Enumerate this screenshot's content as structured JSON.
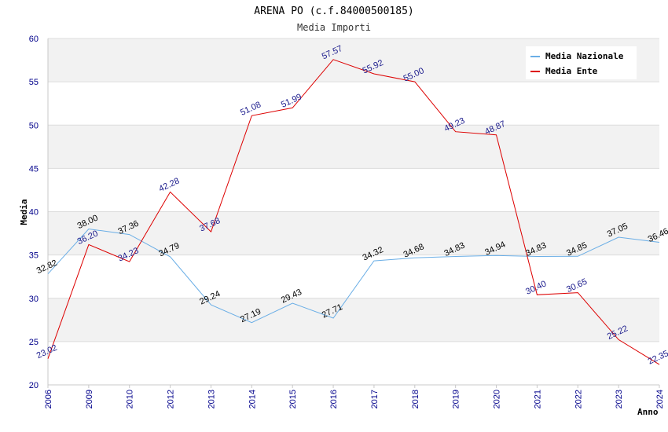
{
  "chart_data": {
    "type": "line",
    "title": "ARENA PO (c.f.84000500185)",
    "subtitle": "Media Importi",
    "xlabel": "Anno",
    "ylabel": "Media",
    "ylim": [
      20,
      60
    ],
    "yticks": [
      20,
      25,
      30,
      35,
      40,
      45,
      50,
      55,
      60
    ],
    "categories": [
      "2006",
      "2009",
      "2010",
      "2012",
      "2013",
      "2014",
      "2015",
      "2016",
      "2017",
      "2018",
      "2019",
      "2020",
      "2021",
      "2022",
      "2023",
      "2024"
    ],
    "legend_position": "top-right",
    "series": [
      {
        "name": "Media Nazionale",
        "color": "#6aaee6",
        "values": [
          32.82,
          38.0,
          37.36,
          34.79,
          29.24,
          27.19,
          29.43,
          27.71,
          34.32,
          34.68,
          34.83,
          34.94,
          34.83,
          34.85,
          37.05,
          36.46
        ],
        "labels": [
          "32.82",
          "38.00",
          "37.36",
          "34.79",
          "29.24",
          "27.19",
          "29.43",
          "27.71",
          "34.32",
          "34.68",
          "34.83",
          "34.94",
          "34.83",
          "34.85",
          "37.05",
          "36.46"
        ]
      },
      {
        "name": "Media Ente",
        "color": "#dd0000",
        "values": [
          23.02,
          36.2,
          34.23,
          42.28,
          37.68,
          51.08,
          51.99,
          57.57,
          55.92,
          55.0,
          49.23,
          48.87,
          30.4,
          30.65,
          25.22,
          22.35
        ],
        "labels": [
          "23.02",
          "36.20",
          "34.23",
          "42.28",
          "37.68",
          "51.08",
          "51.99",
          "57.57",
          "55.92",
          "55.00",
          "49.23",
          "48.87",
          "30.40",
          "30.65",
          "25.22",
          "22.35"
        ]
      }
    ]
  }
}
